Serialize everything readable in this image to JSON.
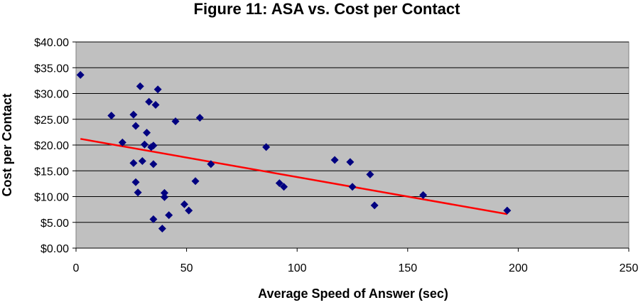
{
  "chart_data": {
    "type": "scatter",
    "title": "Figure 11: ASA vs. Cost per Contact",
    "xlabel": "Average Speed of Answer (sec)",
    "ylabel": "Cost per Contact",
    "xlim": [
      0,
      250
    ],
    "ylim": [
      0,
      40
    ],
    "x_ticks": [
      0,
      50,
      100,
      150,
      200,
      250
    ],
    "x_tick_labels": [
      "0",
      "50",
      "100",
      "150",
      "200",
      "250"
    ],
    "y_ticks": [
      0,
      5,
      10,
      15,
      20,
      25,
      30,
      35,
      40
    ],
    "y_tick_labels": [
      "$0.00",
      "$5.00",
      "$10.00",
      "$15.00",
      "$20.00",
      "$25.00",
      "$30.00",
      "$35.00",
      "$40.00"
    ],
    "grid": "horizontal",
    "legend": "none",
    "series": [
      {
        "marker": "diamond",
        "points": [
          [
            2,
            33.6
          ],
          [
            16,
            25.7
          ],
          [
            21,
            20.5
          ],
          [
            26,
            25.9
          ],
          [
            26,
            16.5
          ],
          [
            27,
            23.7
          ],
          [
            27,
            12.8
          ],
          [
            28,
            10.8
          ],
          [
            29,
            31.4
          ],
          [
            30,
            16.9
          ],
          [
            31,
            20.1
          ],
          [
            32,
            22.4
          ],
          [
            33,
            28.4
          ],
          [
            34,
            19.6
          ],
          [
            35,
            19.9
          ],
          [
            35,
            16.3
          ],
          [
            35,
            5.6
          ],
          [
            36,
            27.8
          ],
          [
            37,
            30.8
          ],
          [
            39,
            3.8
          ],
          [
            40,
            10.7
          ],
          [
            40,
            9.9
          ],
          [
            42,
            6.4
          ],
          [
            45,
            24.6
          ],
          [
            49,
            8.5
          ],
          [
            51,
            7.3
          ],
          [
            54,
            13.0
          ],
          [
            56,
            25.3
          ],
          [
            61,
            16.3
          ],
          [
            86,
            19.6
          ],
          [
            92,
            12.6
          ],
          [
            94,
            11.9
          ],
          [
            117,
            17.1
          ],
          [
            124,
            16.7
          ],
          [
            125,
            11.9
          ],
          [
            133,
            14.3
          ],
          [
            135,
            8.3
          ],
          [
            157,
            10.3
          ],
          [
            195,
            7.3
          ]
        ]
      }
    ],
    "trendline": {
      "type": "linear",
      "x": [
        2,
        195
      ],
      "y": [
        21.2,
        6.6
      ]
    },
    "colors": {
      "plot_background": "#c0c0c0",
      "gridline": "#000000",
      "marker": "#000080",
      "trendline": "#ff0000"
    }
  }
}
